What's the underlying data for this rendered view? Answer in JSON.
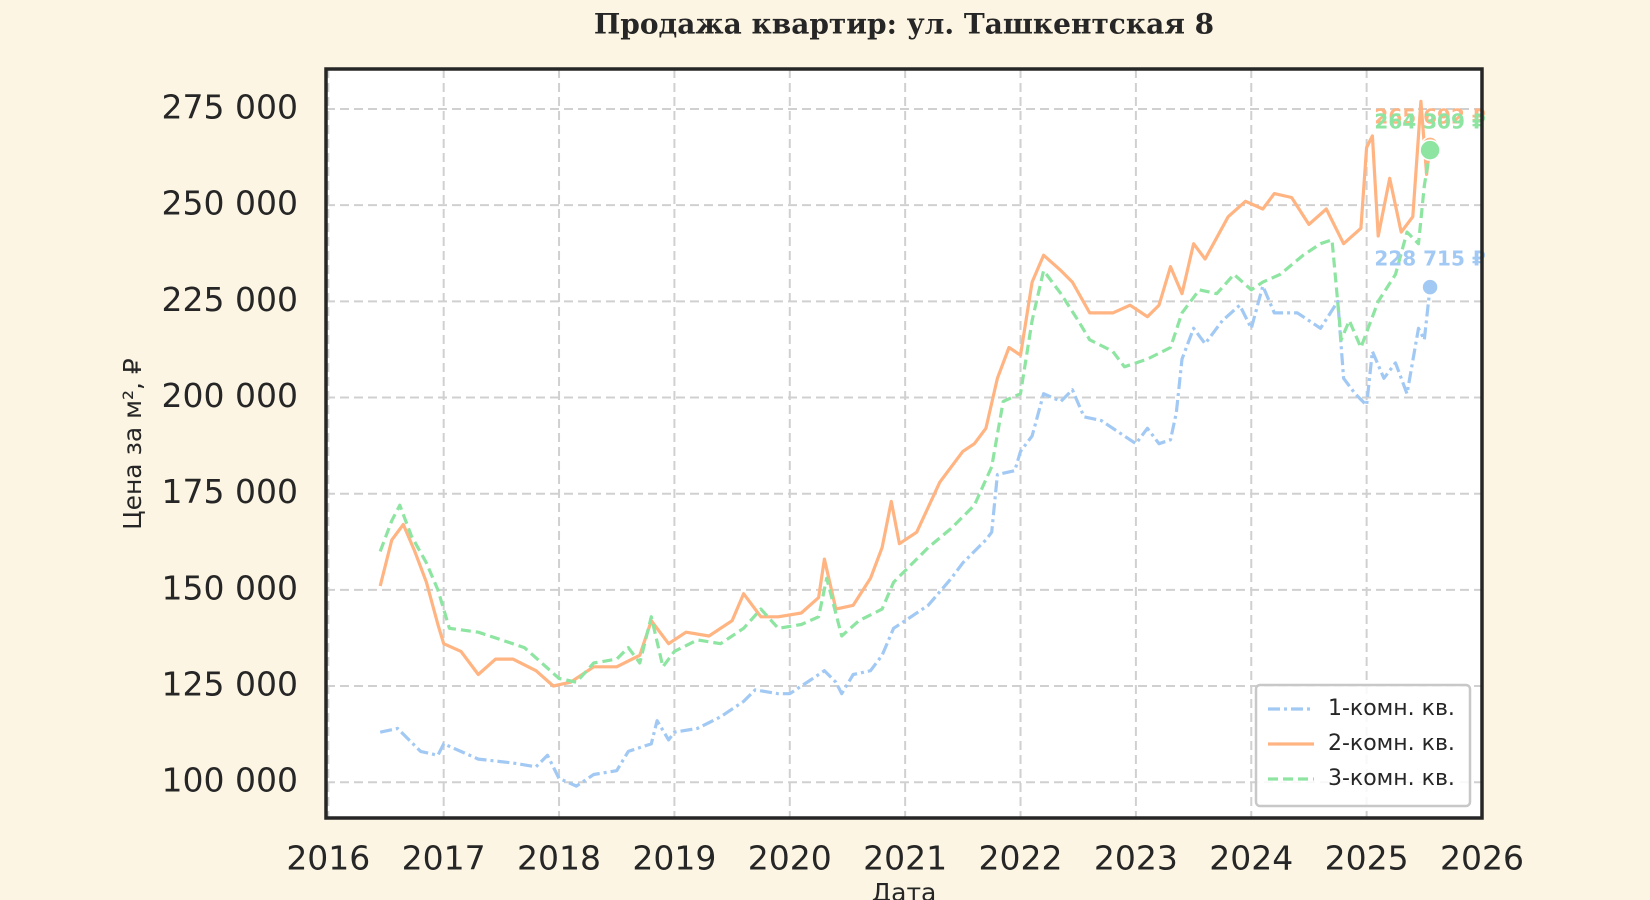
{
  "chart_data": {
    "type": "line",
    "title": "Продажа квартир: ул. Ташкентская 8",
    "xlabel": "Дата",
    "ylabel": "Цена за м², ₽",
    "xlim": [
      2015.98,
      2026
    ],
    "xticks": [
      2016,
      2017,
      2018,
      2019,
      2020,
      2021,
      2022,
      2023,
      2024,
      2025,
      2026
    ],
    "ylim": [
      90700,
      285400
    ],
    "yticks": [
      {
        "value": 100000,
        "label": "100 000"
      },
      {
        "value": 125000,
        "label": "125 000"
      },
      {
        "value": 150000,
        "label": "150 000"
      },
      {
        "value": 175000,
        "label": "175 000"
      },
      {
        "value": 200000,
        "label": "200 000"
      },
      {
        "value": 225000,
        "label": "225 000"
      },
      {
        "value": 250000,
        "label": "250 000"
      },
      {
        "value": 275000,
        "label": "275 000"
      }
    ],
    "grid": true,
    "legend": "lower right",
    "series": [
      {
        "name": "1-комн. кв.",
        "color": "#a1c9f4",
        "linestyle": "dashdot",
        "end_label": "228 715 ₽",
        "x": [
          2016.45,
          2016.6,
          2016.8,
          2016.95,
          2017.0,
          2017.3,
          2017.6,
          2017.8,
          2017.9,
          2018.0,
          2018.15,
          2018.3,
          2018.5,
          2018.6,
          2018.8,
          2018.85,
          2018.95,
          2019.0,
          2019.2,
          2019.4,
          2019.5,
          2019.6,
          2019.7,
          2019.9,
          2020.0,
          2020.2,
          2020.3,
          2020.4,
          2020.45,
          2020.55,
          2020.7,
          2020.8,
          2020.9,
          2021.0,
          2021.2,
          2021.4,
          2021.5,
          2021.7,
          2021.75,
          2021.8,
          2021.95,
          2022.0,
          2022.1,
          2022.2,
          2022.35,
          2022.45,
          2022.55,
          2022.7,
          2022.9,
          2023.0,
          2023.1,
          2023.2,
          2023.3,
          2023.35,
          2023.4,
          2023.5,
          2023.6,
          2023.75,
          2023.9,
          2024.0,
          2024.1,
          2024.2,
          2024.4,
          2024.6,
          2024.75,
          2024.8,
          2024.9,
          2025.0,
          2025.05,
          2025.15,
          2025.25,
          2025.35,
          2025.45,
          2025.5,
          2025.55
        ],
        "values": [
          113000,
          114000,
          108000,
          107000,
          110000,
          106000,
          105000,
          104000,
          107000,
          101000,
          99000,
          102000,
          103000,
          108000,
          110000,
          116000,
          111000,
          113000,
          114000,
          117000,
          119000,
          121000,
          124000,
          123000,
          123000,
          127000,
          129000,
          126000,
          123000,
          128000,
          129000,
          133000,
          140000,
          142000,
          146000,
          153000,
          157000,
          163000,
          165000,
          180000,
          181000,
          186000,
          190000,
          201000,
          199000,
          202000,
          195000,
          194000,
          190000,
          188000,
          192000,
          188000,
          189000,
          196000,
          210000,
          218000,
          214000,
          220000,
          224000,
          218000,
          229000,
          222000,
          222000,
          218000,
          225000,
          205000,
          201000,
          198000,
          212000,
          205000,
          209000,
          201000,
          218000,
          215000,
          228715
        ]
      },
      {
        "name": "2-комн. кв.",
        "color": "#ffb482",
        "linestyle": "solid",
        "end_label": "265 692 ₽",
        "x": [
          2016.45,
          2016.55,
          2016.65,
          2016.75,
          2016.85,
          2016.95,
          2017.0,
          2017.15,
          2017.3,
          2017.45,
          2017.6,
          2017.8,
          2017.95,
          2018.1,
          2018.3,
          2018.5,
          2018.7,
          2018.8,
          2018.95,
          2019.1,
          2019.3,
          2019.5,
          2019.6,
          2019.75,
          2019.9,
          2020.1,
          2020.25,
          2020.3,
          2020.4,
          2020.55,
          2020.7,
          2020.8,
          2020.88,
          2020.95,
          2021.1,
          2021.3,
          2021.5,
          2021.6,
          2021.7,
          2021.8,
          2021.9,
          2022.0,
          2022.1,
          2022.2,
          2022.35,
          2022.45,
          2022.6,
          2022.8,
          2022.95,
          2023.1,
          2023.2,
          2023.3,
          2023.4,
          2023.5,
          2023.6,
          2023.8,
          2023.95,
          2024.1,
          2024.2,
          2024.35,
          2024.5,
          2024.65,
          2024.8,
          2024.95,
          2025.0,
          2025.05,
          2025.1,
          2025.2,
          2025.3,
          2025.4,
          2025.47,
          2025.52,
          2025.55
        ],
        "values": [
          151000,
          163000,
          167000,
          160000,
          152000,
          141000,
          136000,
          134000,
          128000,
          132000,
          132000,
          129000,
          125000,
          126000,
          130000,
          130000,
          133000,
          142000,
          136000,
          139000,
          138000,
          142000,
          149000,
          143000,
          143000,
          144000,
          148000,
          158000,
          145000,
          146000,
          153000,
          161000,
          173000,
          162000,
          165000,
          178000,
          186000,
          188000,
          192000,
          205000,
          213000,
          211000,
          230000,
          237000,
          233000,
          230000,
          222000,
          222000,
          224000,
          221000,
          224000,
          234000,
          227000,
          240000,
          236000,
          247000,
          251000,
          249000,
          253000,
          252000,
          245000,
          249000,
          240000,
          244000,
          265000,
          268000,
          242000,
          257000,
          243000,
          247000,
          277000,
          258000,
          265692
        ]
      },
      {
        "name": "3-комн. кв.",
        "color": "#8de5a1",
        "linestyle": "dashed",
        "end_label": "264 309 ₽",
        "x": [
          2016.45,
          2016.55,
          2016.62,
          2016.72,
          2016.85,
          2016.95,
          2017.05,
          2017.3,
          2017.5,
          2017.7,
          2017.85,
          2018.0,
          2018.15,
          2018.3,
          2018.5,
          2018.6,
          2018.7,
          2018.8,
          2018.9,
          2019.0,
          2019.2,
          2019.4,
          2019.6,
          2019.75,
          2019.9,
          2020.1,
          2020.25,
          2020.32,
          2020.45,
          2020.6,
          2020.8,
          2020.9,
          2021.0,
          2021.2,
          2021.4,
          2021.6,
          2021.75,
          2021.85,
          2022.0,
          2022.1,
          2022.2,
          2022.35,
          2022.5,
          2022.6,
          2022.8,
          2022.9,
          2023.1,
          2023.3,
          2023.4,
          2023.55,
          2023.7,
          2023.85,
          2024.0,
          2024.1,
          2024.25,
          2024.45,
          2024.6,
          2024.7,
          2024.78,
          2024.85,
          2024.95,
          2025.1,
          2025.25,
          2025.35,
          2025.45,
          2025.5,
          2025.55
        ],
        "values": [
          160000,
          168000,
          172000,
          164000,
          157000,
          150000,
          140000,
          139000,
          137000,
          135000,
          131000,
          127000,
          126000,
          131000,
          132000,
          135000,
          131000,
          143000,
          130000,
          134000,
          137000,
          136000,
          140000,
          145000,
          140000,
          141000,
          143000,
          153000,
          138000,
          142000,
          145000,
          152000,
          155000,
          161000,
          166000,
          172000,
          182000,
          199000,
          201000,
          220000,
          233000,
          227000,
          220000,
          215000,
          212000,
          208000,
          210000,
          213000,
          222000,
          228000,
          227000,
          232000,
          228000,
          230000,
          232000,
          237000,
          240000,
          241000,
          215000,
          220000,
          213000,
          225000,
          232000,
          243000,
          240000,
          255000,
          264309
        ]
      }
    ]
  }
}
